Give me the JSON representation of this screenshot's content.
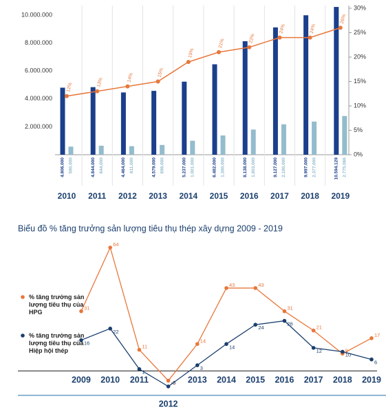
{
  "chart_data": [
    {
      "type": "bar-line",
      "categories": [
        "2010",
        "2011",
        "2012",
        "2013",
        "2014",
        "2015",
        "2016",
        "2017",
        "2018",
        "2019"
      ],
      "series": [
        {
          "color": "#1b3f8b",
          "values": [
            4806000,
            4844000,
            4464000,
            4579000,
            5237000,
            6482000,
            8138000,
            9127000,
            9997000,
            10594129
          ],
          "value_labels": [
            "4.806.000",
            "4.844.000",
            "4.464.000",
            "4.579.000",
            "5.237.000",
            "6.482.000",
            "8.138.000",
            "9.127.000",
            "9.997.000",
            "10.594.129"
          ]
        },
        {
          "color": "#93bccd",
          "values": [
            580000,
            644000,
            611000,
            698000,
            1001000,
            1380000,
            1803000,
            2180000,
            2377000,
            2775066
          ],
          "value_labels": [
            "580.000",
            "644.000",
            "611.000",
            "698.000",
            "1.001.000",
            "1.380.000",
            "1.803.000",
            "2.180.000",
            "2.377.000",
            "2.775.066"
          ]
        },
        {
          "color": "#e8773b",
          "axis": "y2",
          "values": [
            12,
            13,
            14,
            15,
            19,
            21,
            22,
            24,
            24,
            26
          ],
          "value_labels": [
            "12%",
            "13%",
            "14%",
            "15%",
            "19%",
            "21%",
            "22%",
            "24%",
            "24%",
            "26%"
          ]
        }
      ],
      "ylim": [
        0,
        10500000
      ],
      "yticks": [
        {
          "value": 2000000,
          "label": "2.000.000"
        },
        {
          "value": 4000000,
          "label": "4.000.000"
        },
        {
          "value": 6000000,
          "label": "6.000.000"
        },
        {
          "value": 8000000,
          "label": "8.000.000"
        },
        {
          "value": 10000000,
          "label": "10.000.000"
        }
      ],
      "y2lim": [
        0,
        30
      ],
      "y2ticks": [
        {
          "value": 0,
          "label": "0%"
        },
        {
          "value": 5,
          "label": "5%"
        },
        {
          "value": 10,
          "label": "10%"
        },
        {
          "value": 15,
          "label": "15%"
        },
        {
          "value": 20,
          "label": "20%"
        },
        {
          "value": 25,
          "label": "25%"
        },
        {
          "value": 30,
          "label": "30%"
        }
      ]
    },
    {
      "type": "line",
      "title": "Biểu đồ % tăng trưởng sản lượng tiêu thụ thép xây dựng 2009 - 2019",
      "categories": [
        "2009",
        "2010",
        "2011",
        "2012",
        "2013",
        "2014",
        "2015",
        "2016",
        "2017",
        "2018",
        "2019"
      ],
      "series": [
        {
          "name": "% tăng trưởng sản lượng tiêu thụ của HPG",
          "color": "#e8773b",
          "values": [
            31,
            64,
            11,
            -5,
            14,
            43,
            43,
            31,
            21,
            9,
            17
          ]
        },
        {
          "name": "% tăng trưởng sản lượng tiêu thụ của Hiệp hội thép",
          "color": "#1b3f6e",
          "values": [
            16,
            22,
            1,
            -8,
            3,
            14,
            24,
            26,
            12,
            10,
            6
          ]
        }
      ],
      "ylim": [
        -8,
        64
      ]
    }
  ]
}
